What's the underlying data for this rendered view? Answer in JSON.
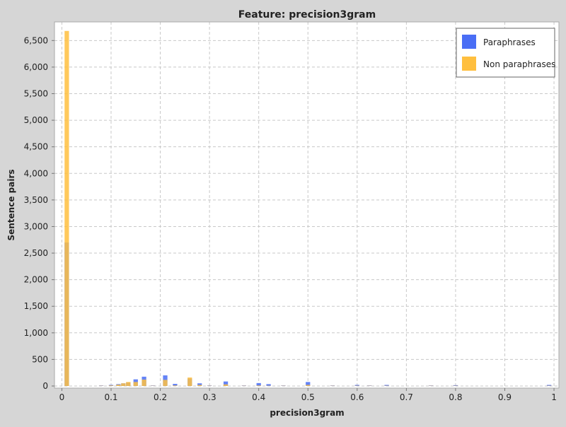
{
  "chart_data": {
    "type": "bar",
    "title": "Feature: precision3gram",
    "xlabel": "precision3gram",
    "ylabel": "Sentence pairs",
    "xlim": [
      -0.015,
      1.01
    ],
    "ylim": [
      -40,
      6850
    ],
    "xticks": [
      0,
      0.1,
      0.2,
      0.3,
      0.4,
      0.5,
      0.6,
      0.7,
      0.8,
      0.9,
      1
    ],
    "xtick_labels": [
      "0",
      "0.1",
      "0.2",
      "0.3",
      "0.4",
      "0.5",
      "0.6",
      "0.7",
      "0.8",
      "0.9",
      "1"
    ],
    "yticks": [
      0,
      500,
      1000,
      1500,
      2000,
      2500,
      3000,
      3500,
      4000,
      4500,
      5000,
      5500,
      6000,
      6500
    ],
    "ytick_labels": [
      "0",
      "500",
      "1,000",
      "1,500",
      "2,000",
      "2,500",
      "3,000",
      "3,500",
      "4,000",
      "4,500",
      "5,000",
      "5,500",
      "6,000",
      "6,500"
    ],
    "grid": true,
    "legend_position": "top-right",
    "bar_width": 0.009,
    "series": [
      {
        "name": "Paraphrases",
        "color": "#4a6ef5",
        "x": [
          0.01,
          0.08,
          0.1,
          0.115,
          0.125,
          0.135,
          0.15,
          0.167,
          0.185,
          0.21,
          0.23,
          0.26,
          0.28,
          0.3,
          0.333,
          0.37,
          0.4,
          0.42,
          0.45,
          0.5,
          0.55,
          0.6,
          0.625,
          0.66,
          0.75,
          0.8,
          0.99
        ],
        "values": [
          2700,
          10,
          20,
          35,
          50,
          65,
          125,
          175,
          10,
          200,
          40,
          140,
          50,
          10,
          85,
          10,
          55,
          35,
          10,
          75,
          10,
          20,
          10,
          20,
          10,
          15,
          20
        ]
      },
      {
        "name": "Non paraphrases",
        "color": "#ffbf3f",
        "x": [
          0.01,
          0.08,
          0.1,
          0.115,
          0.125,
          0.135,
          0.15,
          0.167,
          0.185,
          0.21,
          0.23,
          0.26,
          0.28,
          0.3,
          0.333,
          0.37,
          0.4,
          0.42,
          0.45,
          0.5,
          0.55,
          0.6,
          0.625,
          0.66,
          0.75,
          0.8,
          0.99
        ],
        "values": [
          6680,
          5,
          10,
          25,
          50,
          75,
          75,
          120,
          5,
          115,
          10,
          160,
          20,
          5,
          30,
          5,
          10,
          5,
          5,
          20,
          5,
          5,
          5,
          5,
          5,
          5,
          5
        ]
      }
    ]
  }
}
